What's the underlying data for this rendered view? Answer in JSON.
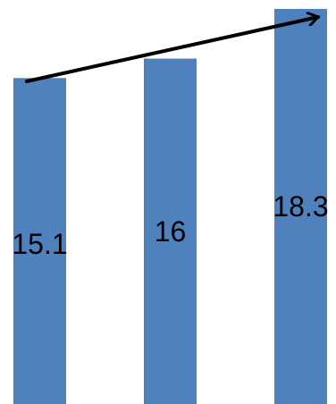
{
  "chart_data": {
    "type": "bar",
    "categories": [
      "",
      "",
      ""
    ],
    "values": [
      15.1,
      16,
      18.3
    ],
    "data_labels": [
      "15.1",
      "16",
      "18.3"
    ],
    "ylim": [
      0,
      18.3
    ],
    "bar_color": "#4f81bd",
    "trend_arrow": {
      "color": "#000000",
      "direction": "increasing"
    },
    "grid": false,
    "legend": "none",
    "title": "",
    "xlabel": "",
    "ylabel": ""
  }
}
